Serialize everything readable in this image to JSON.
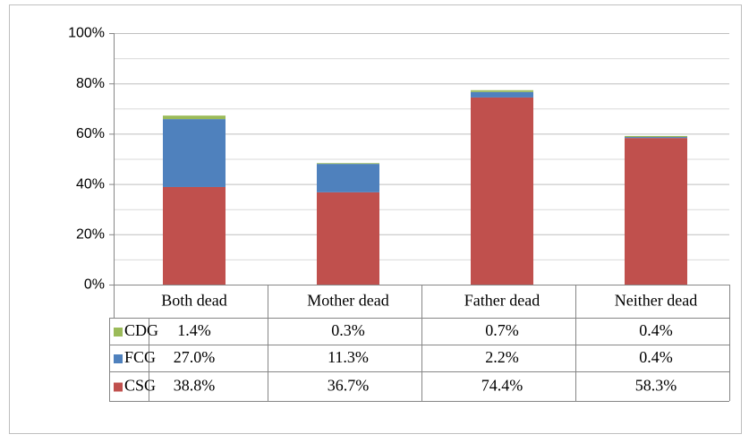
{
  "chart_data": {
    "type": "stacked_bar",
    "categories": [
      "Both dead",
      "Mother dead",
      "Father dead",
      "Neither dead"
    ],
    "series": [
      {
        "name": "CSG",
        "color": "#c0504d",
        "values": [
          38.8,
          36.7,
          74.4,
          58.3
        ],
        "value_labels": [
          "38.8%",
          "36.7%",
          "74.4%",
          "58.3%"
        ]
      },
      {
        "name": "FCG",
        "color": "#4f81bd",
        "values": [
          27.0,
          11.3,
          2.2,
          0.4
        ],
        "value_labels": [
          "27.0%",
          "11.3%",
          "2.2%",
          "0.4%"
        ]
      },
      {
        "name": "CDG",
        "color": "#9bbb59",
        "values": [
          1.4,
          0.3,
          0.7,
          0.4
        ],
        "value_labels": [
          "1.4%",
          "0.3%",
          "0.7%",
          "0.4%"
        ]
      }
    ],
    "ylim": [
      0,
      100
    ],
    "yticks": [
      {
        "value": 0,
        "label": "0%"
      },
      {
        "value": 20,
        "label": "20%"
      },
      {
        "value": 40,
        "label": "40%"
      },
      {
        "value": 60,
        "label": "60%"
      },
      {
        "value": 80,
        "label": "80%"
      },
      {
        "value": 100,
        "label": "100%"
      }
    ],
    "minor_yticks": [
      10,
      30,
      50,
      70,
      90
    ],
    "grid": true,
    "data_table": true
  }
}
